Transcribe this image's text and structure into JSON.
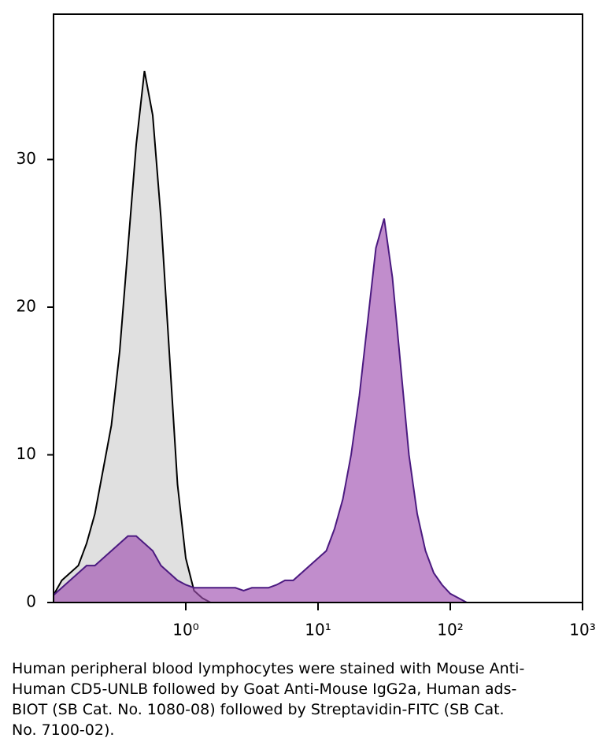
{
  "chart_data": {
    "type": "histogram",
    "x": [
      0.1,
      0.1155,
      0.1334,
      0.154,
      0.1778,
      0.2054,
      0.2371,
      0.2738,
      0.3162,
      0.3652,
      0.4217,
      0.487,
      0.5623,
      0.6494,
      0.7499,
      0.866,
      1,
      1.155,
      1.334,
      1.54,
      1.778,
      2.054,
      2.371,
      2.738,
      3.162,
      3.652,
      4.217,
      4.87,
      5.623,
      6.494,
      7.499,
      8.66,
      10,
      11.55,
      13.34,
      15.4,
      17.78,
      20.54,
      23.71,
      27.38,
      31.62,
      36.52,
      42.17,
      48.7,
      56.23,
      64.94,
      74.99,
      86.6,
      100,
      115.5,
      133.4
    ],
    "series": [
      {
        "color": "#000000",
        "fill": "#e0e0e0",
        "values": [
          0.5,
          1.5,
          2,
          2.5,
          4,
          6,
          9,
          12,
          17,
          24,
          31,
          36,
          33,
          26,
          17,
          8,
          3,
          0.8,
          0.3,
          0,
          0,
          0,
          0,
          0,
          0,
          0,
          0,
          0,
          0,
          0,
          0,
          0,
          0,
          0,
          0,
          0,
          0,
          0,
          0,
          0,
          0,
          0,
          0,
          0,
          0,
          0,
          0,
          0,
          0,
          0,
          0
        ]
      },
      {
        "color": "#4b1a80",
        "fill": "#a050b0",
        "values": [
          0.5,
          1,
          1.5,
          2,
          2.5,
          2.5,
          3,
          3.5,
          4,
          4.5,
          4.5,
          4,
          3.5,
          2.5,
          2,
          1.5,
          1.2,
          1,
          1,
          1,
          1,
          1,
          1,
          0.8,
          1,
          1,
          1,
          1.2,
          1.5,
          1.5,
          2,
          2.5,
          3,
          3.5,
          5,
          7,
          10,
          14,
          19,
          24,
          26,
          22,
          16,
          10,
          6,
          3.5,
          2,
          1.2,
          0.6,
          0.3,
          0
        ]
      }
    ],
    "xscale": "log",
    "xlim": [
      0.1,
      1000
    ],
    "xticks": [
      {
        "value": 1,
        "label": "10⁰"
      },
      {
        "value": 10,
        "label": "10¹"
      },
      {
        "value": 100,
        "label": "10²"
      },
      {
        "value": 1000,
        "label": "10³"
      }
    ],
    "ylim": [
      0,
      40
    ],
    "yticks": [
      0,
      10,
      20,
      30
    ],
    "caption": "Human peripheral blood lymphocytes were stained with Mouse Anti-Human CD5-UNLB followed by Goat Anti-Mouse IgG2a, Human ads-BIOT (SB Cat. No. 1080-08) followed by Streptavidin-FITC (SB Cat. No. 7100-02)."
  }
}
